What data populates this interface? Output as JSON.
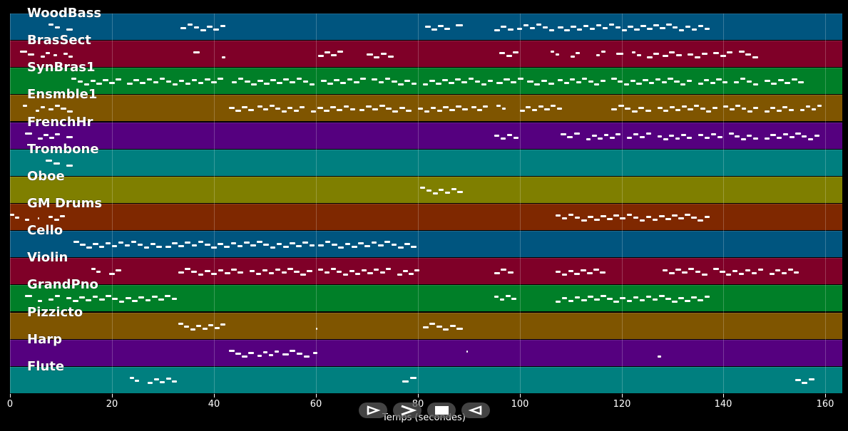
{
  "tracks": [
    {
      "name": "WoodBass",
      "color": "#00557f",
      "notes": [
        [
          7.5,
          10
        ],
        [
          11,
          12.5
        ],
        [
          33.5,
          42.5
        ],
        [
          81.5,
          86.5
        ],
        [
          87.5,
          89
        ],
        [
          95,
          99
        ],
        [
          99.5,
          107
        ],
        [
          107.5,
          137.5
        ]
      ]
    },
    {
      "name": "BrasSect",
      "color": "#7f0028",
      "notes": [
        [
          2,
          5
        ],
        [
          6,
          8
        ],
        [
          8.5,
          9.5
        ],
        [
          10.5,
          12.5
        ],
        [
          36,
          37.5
        ],
        [
          41.5,
          42.5
        ],
        [
          60.5,
          65.5
        ],
        [
          70,
          75.5
        ],
        [
          96,
          100
        ],
        [
          106,
          108
        ],
        [
          110,
          112
        ],
        [
          115,
          117
        ],
        [
          119,
          120.5
        ],
        [
          122,
          124
        ],
        [
          125,
          127.5
        ],
        [
          128,
          132
        ],
        [
          133,
          137
        ],
        [
          138,
          142
        ],
        [
          143,
          147
        ]
      ]
    },
    {
      "name": "SynBras1",
      "color": "#007f28",
      "notes": [
        [
          12,
          22
        ],
        [
          23,
          42
        ],
        [
          43.5,
          60
        ],
        [
          61,
          70
        ],
        [
          71,
          80
        ],
        [
          81,
          95
        ],
        [
          95.5,
          101
        ],
        [
          101.5,
          107
        ],
        [
          107.5,
          117
        ],
        [
          118,
          134
        ],
        [
          135,
          141
        ],
        [
          142,
          147
        ],
        [
          148,
          156
        ]
      ]
    },
    {
      "name": "Ensmble1",
      "color": "#7f5500",
      "notes": [
        [
          2.5,
          3.5
        ],
        [
          5,
          7
        ],
        [
          7.5,
          12.5
        ],
        [
          43,
          48
        ],
        [
          48.5,
          58
        ],
        [
          59,
          68
        ],
        [
          68.5,
          79
        ],
        [
          80,
          90
        ],
        [
          90.5,
          94
        ],
        [
          95.5,
          97.5
        ],
        [
          100,
          108.5
        ],
        [
          118,
          126
        ],
        [
          127,
          139
        ],
        [
          140,
          147
        ],
        [
          148,
          154
        ],
        [
          155,
          159.5
        ]
      ]
    },
    {
      "name": "FrenchHr",
      "color": "#55007f",
      "notes": [
        [
          3,
          4.5
        ],
        [
          5.5,
          10
        ],
        [
          11,
          12.5
        ],
        [
          95,
          100
        ],
        [
          108,
          112
        ],
        [
          113,
          120
        ],
        [
          121,
          126
        ],
        [
          127,
          134
        ],
        [
          135,
          140
        ],
        [
          141,
          147
        ],
        [
          148,
          159
        ]
      ]
    },
    {
      "name": "Trombone",
      "color": "#007f7f",
      "notes": [
        [
          7,
          10
        ],
        [
          11,
          12.5
        ]
      ]
    },
    {
      "name": "Oboe",
      "color": "#7f7f00",
      "notes": [
        [
          80.5,
          89
        ]
      ]
    },
    {
      "name": "GM Drums",
      "color": "#7f2800",
      "notes": [
        [
          0,
          2
        ],
        [
          3,
          4
        ],
        [
          5.5,
          6
        ],
        [
          7.5,
          11
        ],
        [
          107,
          137.5
        ]
      ]
    },
    {
      "name": "Cello",
      "color": "#00557f",
      "notes": [
        [
          12.5,
          30
        ],
        [
          30.5,
          60
        ],
        [
          60.5,
          80
        ]
      ]
    },
    {
      "name": "Violin",
      "color": "#7f0028",
      "notes": [
        [
          16,
          18
        ],
        [
          19.5,
          22
        ],
        [
          33,
          46
        ],
        [
          47,
          59.5
        ],
        [
          60.5,
          75
        ],
        [
          76,
          80.5
        ],
        [
          95,
          99
        ],
        [
          107,
          117
        ],
        [
          128,
          137
        ],
        [
          138,
          148
        ],
        [
          149,
          155
        ]
      ]
    },
    {
      "name": "GrandPno",
      "color": "#007f28",
      "notes": [
        [
          3,
          4.5
        ],
        [
          5.5,
          6.5
        ],
        [
          7.5,
          10
        ],
        [
          11,
          33
        ],
        [
          95,
          99.5
        ],
        [
          107,
          137.5
        ]
      ]
    },
    {
      "name": "Pizzicto",
      "color": "#7f5500",
      "notes": [
        [
          33,
          42.5
        ],
        [
          60,
          60.5
        ],
        [
          81,
          89
        ]
      ]
    },
    {
      "name": "Harp",
      "color": "#55007f",
      "notes": [
        [
          43,
          48
        ],
        [
          48.5,
          53
        ],
        [
          53.5,
          59
        ],
        [
          59.5,
          60.5
        ],
        [
          89.5,
          90
        ],
        [
          127,
          128
        ]
      ]
    },
    {
      "name": "Flute",
      "color": "#007f7f",
      "notes": [
        [
          23.5,
          25.5
        ],
        [
          27,
          33
        ],
        [
          77,
          80
        ],
        [
          154,
          158
        ]
      ]
    }
  ],
  "x_ticks": [
    "0",
    "20",
    "40",
    "60",
    "80",
    "100",
    "120",
    "140",
    "160"
  ],
  "x_label": "Temps (secondes)",
  "controls": [
    {
      "name": "step-forward-icon"
    },
    {
      "name": "play-icon"
    },
    {
      "name": "stop-icon"
    },
    {
      "name": "step-back-icon"
    }
  ]
}
